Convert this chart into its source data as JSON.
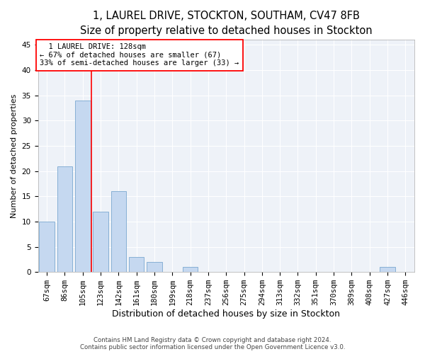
{
  "title": "1, LAUREL DRIVE, STOCKTON, SOUTHAM, CV47 8FB",
  "subtitle": "Size of property relative to detached houses in Stockton",
  "xlabel": "Distribution of detached houses by size in Stockton",
  "ylabel": "Number of detached properties",
  "categories": [
    "67sqm",
    "86sqm",
    "105sqm",
    "123sqm",
    "142sqm",
    "161sqm",
    "180sqm",
    "199sqm",
    "218sqm",
    "237sqm",
    "256sqm",
    "275sqm",
    "294sqm",
    "313sqm",
    "332sqm",
    "351sqm",
    "370sqm",
    "389sqm",
    "408sqm",
    "427sqm",
    "446sqm"
  ],
  "values": [
    10,
    21,
    34,
    12,
    16,
    3,
    2,
    0,
    1,
    0,
    0,
    0,
    0,
    0,
    0,
    0,
    0,
    0,
    0,
    1,
    0
  ],
  "bar_color": "#c5d8f0",
  "bar_edge_color": "#7aa8d0",
  "vline_color": "red",
  "ylim": [
    0,
    46
  ],
  "yticks": [
    0,
    5,
    10,
    15,
    20,
    25,
    30,
    35,
    40,
    45
  ],
  "annotation_line1": "  1 LAUREL DRIVE: 128sqm",
  "annotation_line2": "← 67% of detached houses are smaller (67)",
  "annotation_line3": "33% of semi-detached houses are larger (33) →",
  "annotation_box_color": "red",
  "bg_color": "#eef2f8",
  "grid_color": "white",
  "footer": "Contains HM Land Registry data © Crown copyright and database right 2024.\nContains public sector information licensed under the Open Government Licence v3.0.",
  "title_fontsize": 10.5,
  "subtitle_fontsize": 9,
  "xlabel_fontsize": 9,
  "ylabel_fontsize": 8,
  "tick_fontsize": 7.5,
  "annotation_fontsize": 7.5
}
